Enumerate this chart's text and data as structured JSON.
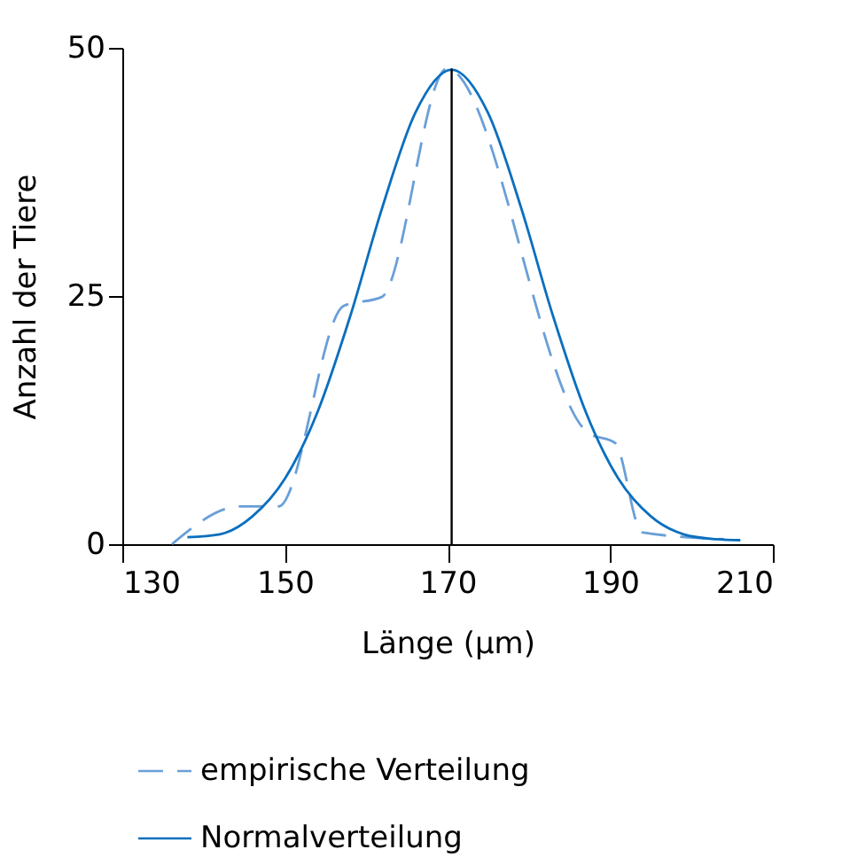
{
  "chart_data": {
    "type": "line",
    "xlabel": "Länge (µm)",
    "ylabel": "Anzahl der Tiere",
    "xlim": [
      130,
      210
    ],
    "xticks": [
      130,
      150,
      170,
      190,
      210
    ],
    "ylim": [
      0,
      50
    ],
    "yticks": [
      0,
      25,
      50
    ],
    "grid": false,
    "legend": "bottom",
    "marker": "none",
    "series": [
      {
        "name": "empirische Verteilung",
        "color": "#6a9fd8",
        "line_style": "dashed",
        "x": [
          136.1,
          144.5,
          149.2,
          157.2,
          161.9,
          169.9,
          187.3,
          190.6,
          193.9,
          204.0
        ],
        "values": [
          0,
          3.8,
          3.8,
          24.0,
          24.9,
          47.9,
          11.2,
          10.2,
          1.2,
          0.5
        ]
      },
      {
        "name": "Normalverteilung",
        "color": "#0a6fbf",
        "line_style": "solid",
        "x": [
          138,
          142,
          146,
          150,
          154,
          158,
          162,
          166,
          170.5,
          175,
          179,
          183,
          187,
          191,
          195,
          199,
          203,
          206
        ],
        "values": [
          0.7,
          1.0,
          2.8,
          6.6,
          13.3,
          22.9,
          34.0,
          43.4,
          47.8,
          43.4,
          34.0,
          22.9,
          13.3,
          6.6,
          2.8,
          1.0,
          0.5,
          0.4
        ]
      }
    ],
    "ref_lines": [
      {
        "axis": "x",
        "value": 170.5,
        "color": "#000000"
      }
    ]
  }
}
